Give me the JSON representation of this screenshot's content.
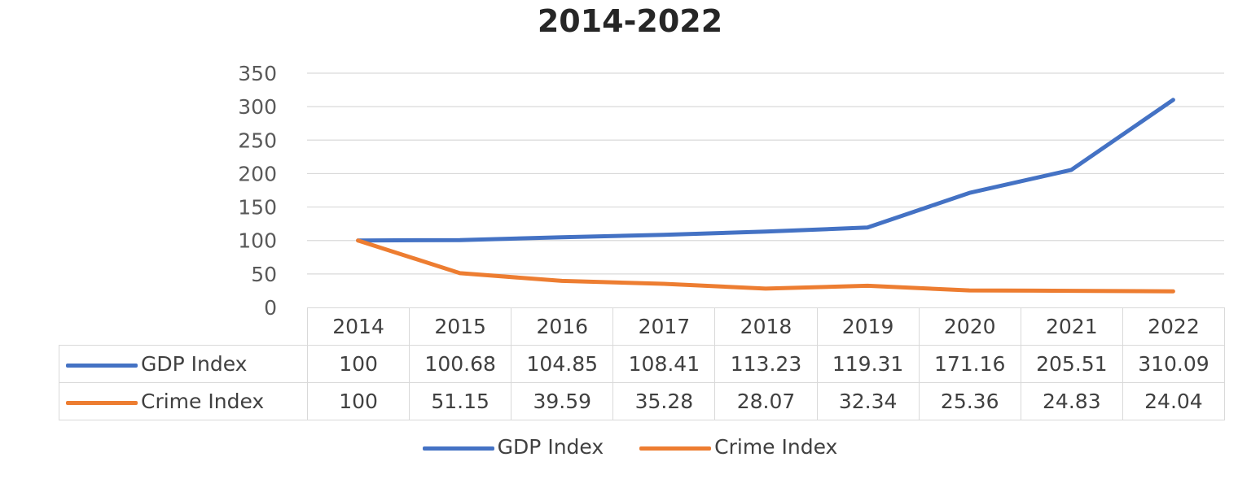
{
  "chart_data": {
    "type": "line",
    "title": "2014-2022",
    "categories": [
      "2014",
      "2015",
      "2016",
      "2017",
      "2018",
      "2019",
      "2020",
      "2021",
      "2022"
    ],
    "series": [
      {
        "name": "GDP Index",
        "color": "#4472c4",
        "values": [
          100,
          100.68,
          104.85,
          108.41,
          113.23,
          119.31,
          171.16,
          205.51,
          310.09
        ],
        "labels": [
          "100",
          "100.68",
          "104.85",
          "108.41",
          "113.23",
          "119.31",
          "171.16",
          "205.51",
          "310.09"
        ]
      },
      {
        "name": "Crime Index",
        "color": "#ed7d31",
        "values": [
          100,
          51.15,
          39.59,
          35.28,
          28.07,
          32.34,
          25.36,
          24.83,
          24.04
        ],
        "labels": [
          "100",
          "51.15",
          "39.59",
          "35.28",
          "28.07",
          "32.34",
          "25.36",
          "24.83",
          "24.04"
        ]
      }
    ],
    "ylim": [
      0,
      350
    ],
    "yticks": [
      0,
      50,
      100,
      150,
      200,
      250,
      300,
      350
    ],
    "grid": true,
    "legend": "bottom",
    "data_table": true
  }
}
